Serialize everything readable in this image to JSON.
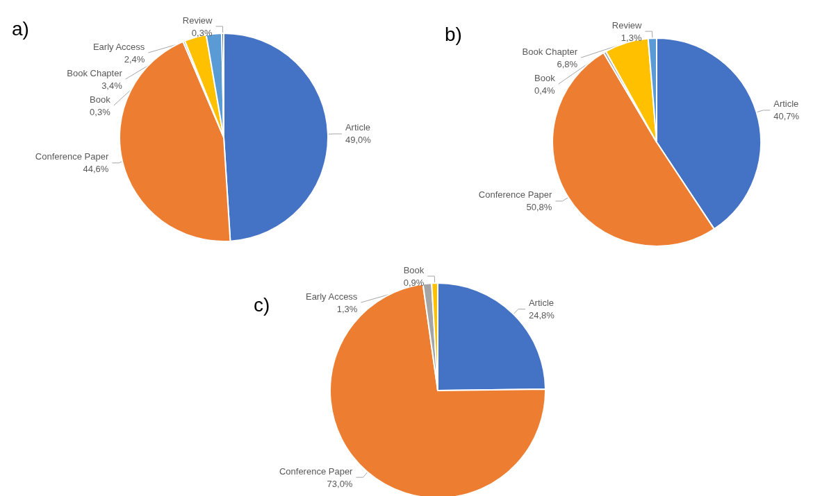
{
  "chart_data": [
    {
      "type": "pie",
      "title": "a)",
      "categories": [
        "Article",
        "Conference Paper",
        "Book",
        "Book Chapter",
        "Early Access",
        "Review"
      ],
      "values": [
        49.0,
        44.6,
        0.3,
        3.4,
        2.4,
        0.3
      ],
      "value_labels": [
        "49,0%",
        "44,6%",
        "0,3%",
        "3,4%",
        "2,4%",
        "0,3%"
      ],
      "colors": [
        "#4472c4",
        "#ed7d31",
        "#a5a5a5",
        "#ffc000",
        "#5b9bd5",
        "#264478"
      ]
    },
    {
      "type": "pie",
      "title": "b)",
      "categories": [
        "Article",
        "Conference Paper",
        "Book",
        "Book Chapter",
        "Review"
      ],
      "values": [
        40.7,
        50.8,
        0.4,
        6.8,
        1.3
      ],
      "value_labels": [
        "40,7%",
        "50,8%",
        "0,4%",
        "6,8%",
        "1,3%"
      ],
      "colors": [
        "#4472c4",
        "#ed7d31",
        "#a5a5a5",
        "#ffc000",
        "#5b9bd5"
      ]
    },
    {
      "type": "pie",
      "title": "c)",
      "categories": [
        "Article",
        "Conference Paper",
        "Early Access",
        "Book"
      ],
      "values": [
        24.8,
        73.0,
        1.3,
        0.9
      ],
      "value_labels": [
        "24,8%",
        "73,0%",
        "1,3%",
        "0,9%"
      ],
      "colors": [
        "#4472c4",
        "#ed7d31",
        "#a5a5a5",
        "#ffc000"
      ]
    }
  ]
}
